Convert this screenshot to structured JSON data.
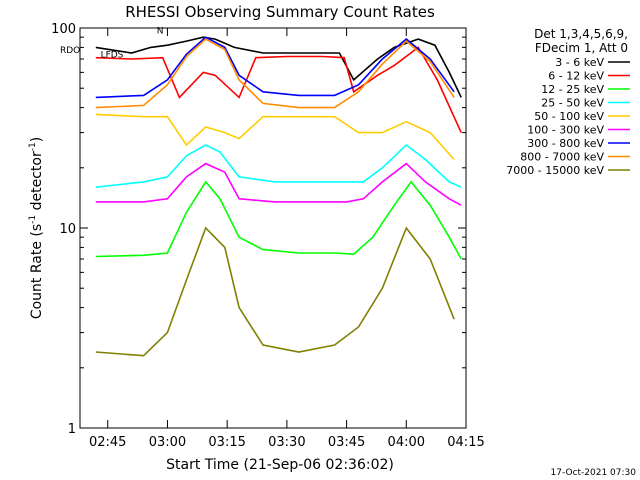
{
  "chart_data": {
    "type": "line",
    "title": "RHESSI Observing Summary Count Rates",
    "xlabel": "Start Time (21-Sep-06 02:36:02)",
    "ylabel": "Count Rate (s^-1 detector^-1)",
    "ylabel_main": "Count Rate (s",
    "ylabel_sup": "-1",
    "ylabel_rest": " detector",
    "ylabel_sup2": "-1",
    "ylabel_end": ")",
    "yscale": "log",
    "ylim": [
      1,
      100
    ],
    "xlim": [
      2.6339,
      4.25
    ],
    "x_ticks": [
      {
        "v": 2.75,
        "label": "02:45"
      },
      {
        "v": 3.0,
        "label": "03:00"
      },
      {
        "v": 3.25,
        "label": "03:15"
      },
      {
        "v": 3.5,
        "label": "03:30"
      },
      {
        "v": 3.75,
        "label": "03:45"
      },
      {
        "v": 4.0,
        "label": "04:00"
      },
      {
        "v": 4.25,
        "label": "04:15"
      }
    ],
    "y_ticks": [
      {
        "v": 1,
        "label": "1"
      },
      {
        "v": 10,
        "label": "10"
      },
      {
        "v": 100,
        "label": "100"
      }
    ],
    "legend_header": [
      "Det 1,3,4,5,6,9,",
      "FDecim 1, Att 0"
    ],
    "legend_position": "right",
    "series": [
      {
        "name": "3 - 6 keV",
        "color": "#000000",
        "values": [
          [
            2.7,
            80
          ],
          [
            2.85,
            75
          ],
          [
            2.93,
            80
          ],
          [
            3.0,
            82
          ],
          [
            3.08,
            86
          ],
          [
            3.15,
            90
          ],
          [
            3.2,
            88
          ],
          [
            3.28,
            80
          ],
          [
            3.4,
            75
          ],
          [
            3.52,
            75
          ],
          [
            3.65,
            75
          ],
          [
            3.72,
            75
          ],
          [
            3.78,
            55
          ],
          [
            3.88,
            70
          ],
          [
            3.95,
            80
          ],
          [
            4.05,
            88
          ],
          [
            4.12,
            82
          ],
          [
            4.18,
            60
          ],
          [
            4.23,
            45
          ]
        ]
      },
      {
        "name": "6 - 12 keV",
        "color": "#ff0000",
        "values": [
          [
            2.7,
            71
          ],
          [
            2.85,
            70
          ],
          [
            2.98,
            71
          ],
          [
            3.05,
            45
          ],
          [
            3.15,
            60
          ],
          [
            3.2,
            58
          ],
          [
            3.3,
            45
          ],
          [
            3.37,
            71
          ],
          [
            3.5,
            72
          ],
          [
            3.65,
            72
          ],
          [
            3.74,
            71
          ],
          [
            3.78,
            48
          ],
          [
            3.88,
            58
          ],
          [
            3.95,
            65
          ],
          [
            4.05,
            80
          ],
          [
            4.13,
            55
          ],
          [
            4.23,
            30
          ]
        ]
      },
      {
        "name": "12 - 25 keV",
        "color": "#00ff00",
        "values": [
          [
            2.7,
            7.2
          ],
          [
            2.9,
            7.3
          ],
          [
            3.0,
            7.5
          ],
          [
            3.08,
            12
          ],
          [
            3.16,
            17
          ],
          [
            3.22,
            14
          ],
          [
            3.3,
            9
          ],
          [
            3.4,
            7.8
          ],
          [
            3.55,
            7.5
          ],
          [
            3.7,
            7.5
          ],
          [
            3.78,
            7.4
          ],
          [
            3.86,
            9
          ],
          [
            3.95,
            13
          ],
          [
            4.02,
            17
          ],
          [
            4.1,
            13
          ],
          [
            4.18,
            9
          ],
          [
            4.23,
            7
          ]
        ]
      },
      {
        "name": "25 - 50 keV",
        "color": "#00ffff",
        "values": [
          [
            2.7,
            16
          ],
          [
            2.9,
            17
          ],
          [
            3.0,
            18
          ],
          [
            3.08,
            23
          ],
          [
            3.16,
            26
          ],
          [
            3.22,
            24
          ],
          [
            3.3,
            18
          ],
          [
            3.45,
            17
          ],
          [
            3.6,
            17
          ],
          [
            3.75,
            17
          ],
          [
            3.82,
            17
          ],
          [
            3.9,
            20
          ],
          [
            4.0,
            26
          ],
          [
            4.08,
            22
          ],
          [
            4.18,
            17
          ],
          [
            4.23,
            16
          ]
        ]
      },
      {
        "name": "50 - 100 keV",
        "color": "#ffcc00",
        "values": [
          [
            2.7,
            37
          ],
          [
            2.9,
            36
          ],
          [
            3.0,
            36
          ],
          [
            3.08,
            26
          ],
          [
            3.16,
            32
          ],
          [
            3.24,
            30
          ],
          [
            3.3,
            28
          ],
          [
            3.4,
            36
          ],
          [
            3.55,
            36
          ],
          [
            3.7,
            36
          ],
          [
            3.8,
            30
          ],
          [
            3.9,
            30
          ],
          [
            4.0,
            34
          ],
          [
            4.1,
            30
          ],
          [
            4.2,
            22
          ]
        ]
      },
      {
        "name": "100 - 300 keV",
        "color": "#ff00ff",
        "values": [
          [
            2.7,
            13.5
          ],
          [
            2.9,
            13.5
          ],
          [
            3.0,
            14
          ],
          [
            3.08,
            18
          ],
          [
            3.16,
            21
          ],
          [
            3.24,
            19
          ],
          [
            3.3,
            14
          ],
          [
            3.45,
            13.5
          ],
          [
            3.6,
            13.5
          ],
          [
            3.75,
            13.5
          ],
          [
            3.82,
            14
          ],
          [
            3.9,
            17
          ],
          [
            4.0,
            21
          ],
          [
            4.08,
            17
          ],
          [
            4.18,
            14
          ],
          [
            4.23,
            13
          ]
        ]
      },
      {
        "name": "300 - 800 keV",
        "color": "#0000ff",
        "values": [
          [
            2.7,
            45
          ],
          [
            2.9,
            46
          ],
          [
            3.0,
            55
          ],
          [
            3.08,
            74
          ],
          [
            3.16,
            90
          ],
          [
            3.24,
            80
          ],
          [
            3.3,
            58
          ],
          [
            3.4,
            48
          ],
          [
            3.55,
            46
          ],
          [
            3.7,
            46
          ],
          [
            3.8,
            52
          ],
          [
            3.9,
            70
          ],
          [
            4.0,
            88
          ],
          [
            4.1,
            70
          ],
          [
            4.2,
            48
          ]
        ]
      },
      {
        "name": "800 - 7000 keV",
        "color": "#ff8c00",
        "values": [
          [
            2.7,
            40
          ],
          [
            2.9,
            41
          ],
          [
            3.0,
            52
          ],
          [
            3.08,
            72
          ],
          [
            3.16,
            88
          ],
          [
            3.24,
            78
          ],
          [
            3.3,
            55
          ],
          [
            3.4,
            42
          ],
          [
            3.55,
            40
          ],
          [
            3.7,
            40
          ],
          [
            3.8,
            48
          ],
          [
            3.9,
            66
          ],
          [
            4.0,
            86
          ],
          [
            4.1,
            68
          ],
          [
            4.2,
            45
          ]
        ]
      },
      {
        "name": "7000 - 15000 keV",
        "color": "#808000",
        "values": [
          [
            2.7,
            2.4
          ],
          [
            2.9,
            2.3
          ],
          [
            3.0,
            3.0
          ],
          [
            3.08,
            5.5
          ],
          [
            3.16,
            10
          ],
          [
            3.24,
            8
          ],
          [
            3.3,
            4
          ],
          [
            3.4,
            2.6
          ],
          [
            3.55,
            2.4
          ],
          [
            3.7,
            2.6
          ],
          [
            3.8,
            3.2
          ],
          [
            3.9,
            5
          ],
          [
            4.0,
            10
          ],
          [
            4.1,
            7
          ],
          [
            4.2,
            3.5
          ]
        ]
      }
    ],
    "annotations": [
      {
        "label": "RDO",
        "x": 2.6339,
        "y": 75
      },
      {
        "label": "LFDS",
        "x": 2.72,
        "y": 71
      },
      {
        "label": "N",
        "x": 2.955,
        "y": 94
      }
    ],
    "footer_date": "17-Oct-2021 07:30"
  }
}
